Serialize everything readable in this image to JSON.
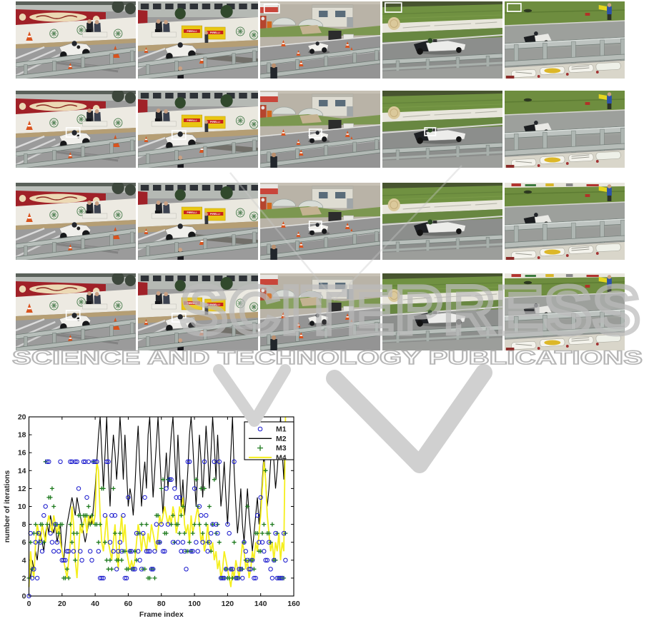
{
  "page": {
    "background": "#ffffff"
  },
  "watermark": {
    "big_text": "SCITEPRESS",
    "line_text": "SCIENCE AND TECHNOLOGY PUBLICATIONS",
    "outline_color": "#bcbcbc",
    "swoosh_color": "#d2d2d2"
  },
  "video_grid": {
    "rows": 4,
    "cols": 5,
    "scene_names": [
      "pit-lane-alfa",
      "pit-lane-pirelli",
      "paddock-buildings",
      "grass-bank",
      "guardrail-closeup"
    ],
    "banner_texts": {
      "pirelli": "PIRELLI"
    },
    "frames": [
      [
        {
          "scene": "pit-lane-alfa",
          "box": null
        },
        {
          "scene": "pit-lane-pirelli",
          "box": null
        },
        {
          "scene": "paddock-buildings",
          "box": "corner"
        },
        {
          "scene": "grass-bank",
          "box": "corner"
        },
        {
          "scene": "guardrail-closeup",
          "box": "corner",
          "banner": false
        }
      ],
      [
        {
          "scene": "pit-lane-alfa",
          "box": "car"
        },
        {
          "scene": "pit-lane-pirelli",
          "box": "car"
        },
        {
          "scene": "paddock-buildings",
          "box": "car"
        },
        {
          "scene": "grass-bank",
          "box": "car"
        },
        {
          "scene": "guardrail-closeup",
          "box": null,
          "banner": false
        }
      ],
      [
        {
          "scene": "pit-lane-alfa",
          "box": null
        },
        {
          "scene": "pit-lane-pirelli",
          "box": null
        },
        {
          "scene": "paddock-buildings",
          "box": "car"
        },
        {
          "scene": "grass-bank",
          "box": null
        },
        {
          "scene": "guardrail-closeup",
          "box": null,
          "banner": true
        }
      ],
      [
        {
          "scene": "pit-lane-alfa",
          "box": "car"
        },
        {
          "scene": "pit-lane-pirelli",
          "box": "car"
        },
        {
          "scene": "paddock-buildings",
          "box": null
        },
        {
          "scene": "grass-bank",
          "box": null
        },
        {
          "scene": "guardrail-closeup",
          "box": null,
          "banner": true
        }
      ]
    ]
  },
  "chart_data": {
    "type": "line",
    "title": "",
    "xlabel": "Frame index",
    "ylabel": "number of iterations",
    "xlim": [
      0,
      160
    ],
    "ylim": [
      0,
      20
    ],
    "xticks": [
      0,
      20,
      40,
      60,
      80,
      100,
      120,
      140,
      160
    ],
    "yticks": [
      0,
      2,
      4,
      6,
      8,
      10,
      12,
      14,
      16,
      18,
      20
    ],
    "grid": false,
    "legend_position": "top-right",
    "x": {
      "start": 0,
      "step": 1,
      "count": 156
    },
    "series": [
      {
        "name": "M1",
        "style": "scatter",
        "marker": "circle",
        "color": "#1515cc",
        "values": [
          0,
          7,
          2,
          3,
          6,
          2,
          7,
          6,
          5,
          9,
          10,
          15,
          15,
          7,
          6,
          5,
          8,
          6,
          5,
          15,
          4,
          4,
          4,
          5,
          5,
          15,
          15,
          5,
          15,
          15,
          12,
          5,
          4,
          15,
          15,
          11,
          15,
          5,
          4,
          15,
          15,
          15,
          5,
          2,
          2,
          2,
          9,
          15,
          15,
          6,
          9,
          5,
          9,
          3,
          5,
          6,
          5,
          9,
          2,
          2,
          11,
          5,
          5,
          3,
          3,
          7,
          5,
          4,
          3,
          7,
          11,
          5,
          5,
          5,
          3,
          3,
          5,
          8,
          6,
          6,
          8,
          5,
          5,
          12,
          8,
          13,
          13,
          6,
          12,
          11,
          6,
          11,
          5,
          6,
          5,
          3,
          15,
          15,
          5,
          5,
          12,
          6,
          5,
          10,
          9,
          6,
          15,
          9,
          5,
          6,
          7,
          8,
          15,
          8,
          7,
          15,
          2,
          2,
          2,
          3,
          8,
          7,
          3,
          3,
          15,
          2,
          2,
          3,
          3,
          2,
          6,
          5,
          4,
          3,
          3,
          4,
          2,
          2,
          9,
          6,
          11,
          6,
          5,
          4,
          4,
          6,
          3,
          2,
          4,
          7,
          2,
          2,
          2,
          2,
          7,
          4
        ]
      },
      {
        "name": "M2",
        "style": "line",
        "marker": "none",
        "color": "#000000",
        "values": [
          3,
          2,
          4,
          3,
          5,
          4,
          6,
          7,
          6,
          5,
          7,
          8,
          7,
          9,
          8,
          7,
          8,
          6,
          7,
          8,
          5,
          4,
          6,
          8,
          9,
          10,
          11,
          10,
          9,
          11,
          10,
          9,
          8,
          7,
          6,
          7,
          8,
          9,
          8,
          10,
          12,
          15,
          18,
          20,
          16,
          12,
          16,
          20,
          14,
          10,
          15,
          18,
          16,
          13,
          16,
          20,
          17,
          13,
          18,
          14,
          10,
          12,
          11,
          9,
          12,
          16,
          19,
          14,
          10,
          13,
          15,
          12,
          18,
          20,
          15,
          11,
          14,
          17,
          20,
          16,
          12,
          9,
          13,
          16,
          12,
          15,
          18,
          20,
          16,
          12,
          18,
          14,
          10,
          13,
          9,
          11,
          14,
          18,
          20,
          17,
          13,
          10,
          14,
          18,
          15,
          11,
          15,
          19,
          16,
          12,
          16,
          20,
          17,
          13,
          18,
          14,
          10,
          12,
          15,
          11,
          8,
          12,
          16,
          20,
          14,
          10,
          7,
          9,
          12,
          8,
          6,
          9,
          12,
          9,
          7,
          5,
          7,
          9,
          11,
          8,
          10,
          13,
          16,
          13,
          10,
          12,
          15,
          18,
          15,
          12,
          14,
          17,
          20,
          16,
          13,
          20
        ]
      },
      {
        "name": "M3",
        "style": "scatter",
        "marker": "plus",
        "color": "#1d7a1d",
        "values": [
          2,
          6,
          3,
          7,
          8,
          7,
          6,
          8,
          8,
          6,
          15,
          8,
          11,
          11,
          12,
          10,
          8,
          8,
          7,
          8,
          8,
          2,
          2,
          3,
          2,
          8,
          6,
          7,
          4,
          7,
          9,
          9,
          8,
          9,
          9,
          9,
          10,
          8,
          9,
          15,
          8,
          8,
          6,
          8,
          12,
          12,
          6,
          4,
          3,
          4,
          3,
          12,
          7,
          4,
          4,
          7,
          4,
          5,
          5,
          3,
          3,
          5,
          3,
          3,
          5,
          4,
          7,
          7,
          8,
          3,
          3,
          8,
          2,
          2,
          3,
          3,
          2,
          9,
          9,
          6,
          12,
          13,
          7,
          7,
          13,
          13,
          8,
          9,
          6,
          8,
          8,
          7,
          9,
          10,
          7,
          5,
          5,
          6,
          5,
          7,
          8,
          13,
          10,
          8,
          12,
          7,
          12,
          8,
          6,
          10,
          5,
          8,
          13,
          7,
          8,
          6,
          2,
          2,
          2,
          3,
          2,
          2,
          3,
          2,
          6,
          2,
          2,
          2,
          3,
          3,
          6,
          4,
          10,
          4,
          4,
          4,
          3,
          7,
          7,
          5,
          5,
          7,
          8,
          14,
          7,
          7,
          6,
          8,
          4,
          4,
          7,
          2,
          2,
          2,
          2,
          7
        ]
      },
      {
        "name": "M4",
        "style": "line",
        "marker": "none",
        "color": "#f5ef1e",
        "values": [
          1,
          5,
          3,
          2,
          6,
          8,
          7,
          6,
          8,
          7,
          6,
          8,
          9,
          8,
          7,
          9,
          8,
          7,
          8,
          6,
          5,
          4,
          3,
          2,
          4,
          6,
          10,
          8,
          4,
          2,
          5,
          8,
          7,
          8,
          9,
          7,
          9,
          8,
          9,
          8,
          9,
          15,
          14,
          9,
          6,
          5,
          7,
          9,
          6,
          5,
          4,
          6,
          8,
          5,
          3,
          7,
          9,
          6,
          8,
          5,
          4,
          3,
          4,
          3,
          4,
          6,
          8,
          7,
          5,
          7,
          6,
          5,
          7,
          6,
          8,
          7,
          6,
          5,
          7,
          9,
          8,
          9,
          10,
          9,
          8,
          9,
          8,
          10,
          9,
          7,
          8,
          10,
          9,
          11,
          8,
          7,
          8,
          6,
          9,
          7,
          8,
          9,
          10,
          8,
          6,
          7,
          5,
          6,
          8,
          6,
          5,
          6,
          4,
          5,
          3,
          4,
          2,
          3,
          5,
          4,
          3,
          2,
          1,
          3,
          2,
          4,
          3,
          2,
          4,
          6,
          5,
          3,
          4,
          2,
          3,
          5,
          4,
          6,
          5,
          7,
          9,
          12,
          15,
          13,
          9,
          7,
          5,
          6,
          4,
          6,
          5,
          7,
          4,
          6,
          5,
          20
        ]
      }
    ]
  }
}
